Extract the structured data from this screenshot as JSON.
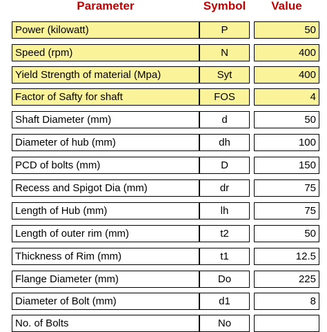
{
  "header": {
    "parameter": "Parameter",
    "symbol": "Symbol",
    "value": "Value"
  },
  "rows": [
    {
      "parameter": "Power (kilowatt)",
      "symbol": "P",
      "value": "50",
      "highlight": true
    },
    {
      "parameter": "Speed (rpm)",
      "symbol": "N",
      "value": "400",
      "highlight": true
    },
    {
      "parameter": "Yield Strength of material (Mpa)",
      "symbol": "Syt",
      "value": "400",
      "highlight": true
    },
    {
      "parameter": "Factor of Safty for shaft",
      "symbol": "FOS",
      "value": "4",
      "highlight": true
    },
    {
      "parameter": "Shaft Diameter (mm)",
      "symbol": "d",
      "value": "50",
      "highlight": false
    },
    {
      "parameter": "Diameter of hub (mm)",
      "symbol": "dh",
      "value": "100",
      "highlight": false
    },
    {
      "parameter": "PCD of bolts (mm)",
      "symbol": "D",
      "value": "150",
      "highlight": false
    },
    {
      "parameter": "Recess and Spigot Dia (mm)",
      "symbol": "dr",
      "value": "75",
      "highlight": false
    },
    {
      "parameter": "Length of Hub (mm)",
      "symbol": "lh",
      "value": "75",
      "highlight": false
    },
    {
      "parameter": "Length of outer rim (mm)",
      "symbol": "t2",
      "value": "50",
      "highlight": false
    },
    {
      "parameter": "Thickness of Rim (mm)",
      "symbol": "t1",
      "value": "12.5",
      "highlight": false
    },
    {
      "parameter": "Flange Diameter (mm)",
      "symbol": "Do",
      "value": "225",
      "highlight": false
    },
    {
      "parameter": "Diameter of Bolt (mm)",
      "symbol": "d1",
      "value": "8",
      "highlight": false
    },
    {
      "parameter": "No. of Bolts",
      "symbol": "No",
      "value": "",
      "highlight": false
    }
  ],
  "colors": {
    "header_text": "#c00000",
    "highlight_fill": "#fbf39a",
    "border": "#000000"
  }
}
